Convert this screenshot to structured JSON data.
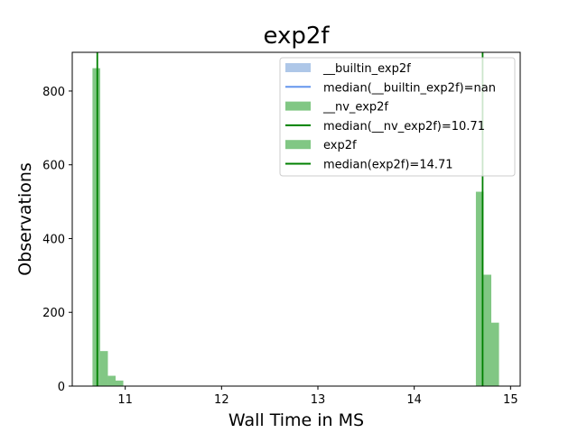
{
  "chart_data": {
    "type": "bar",
    "title": "exp2f",
    "xlabel": "Wall Time in MS",
    "ylabel": "Observations",
    "xlim": [
      10.45,
      15.1
    ],
    "ylim": [
      0,
      905
    ],
    "xticks": [
      11,
      12,
      13,
      14,
      15
    ],
    "yticks": [
      0,
      200,
      400,
      600,
      800
    ],
    "grid": false,
    "legend_position": "top-right",
    "series": [
      {
        "name": "__builtin_exp2f",
        "kind": "hist",
        "color": "#aec7e8",
        "bins": []
      },
      {
        "name": "__nv_exp2f",
        "kind": "hist",
        "color": "#4caf50",
        "opacity": 0.7,
        "bins": [
          {
            "x0": 10.66,
            "x1": 10.74,
            "count": 862
          },
          {
            "x0": 10.74,
            "x1": 10.82,
            "count": 95
          },
          {
            "x0": 10.82,
            "x1": 10.9,
            "count": 28
          },
          {
            "x0": 10.9,
            "x1": 10.98,
            "count": 15
          }
        ]
      },
      {
        "name": "exp2f",
        "kind": "hist",
        "color": "#4caf50",
        "opacity": 0.7,
        "bins": [
          {
            "x0": 14.64,
            "x1": 14.72,
            "count": 527
          },
          {
            "x0": 14.72,
            "x1": 14.8,
            "count": 302
          },
          {
            "x0": 14.8,
            "x1": 14.88,
            "count": 172
          }
        ]
      }
    ],
    "medians": [
      {
        "name": "median(__builtin_exp2f)=nan",
        "value": null,
        "color": "#6495ed"
      },
      {
        "name": "median(__nv_exp2f)=10.71",
        "value": 10.71,
        "color": "#008000"
      },
      {
        "name": "median(exp2f)=14.71",
        "value": 14.71,
        "color": "#008000"
      }
    ],
    "legend": [
      {
        "label": "__builtin_exp2f",
        "swatch": "patch",
        "color": "#aec7e8"
      },
      {
        "label": "median(__builtin_exp2f)=nan",
        "swatch": "line",
        "color": "#6495ed"
      },
      {
        "label": "__nv_exp2f",
        "swatch": "patch",
        "color": "#81c784"
      },
      {
        "label": "median(__nv_exp2f)=10.71",
        "swatch": "line",
        "color": "#008000"
      },
      {
        "label": "exp2f",
        "swatch": "patch",
        "color": "#81c784"
      },
      {
        "label": "median(exp2f)=14.71",
        "swatch": "line",
        "color": "#008000"
      }
    ]
  }
}
